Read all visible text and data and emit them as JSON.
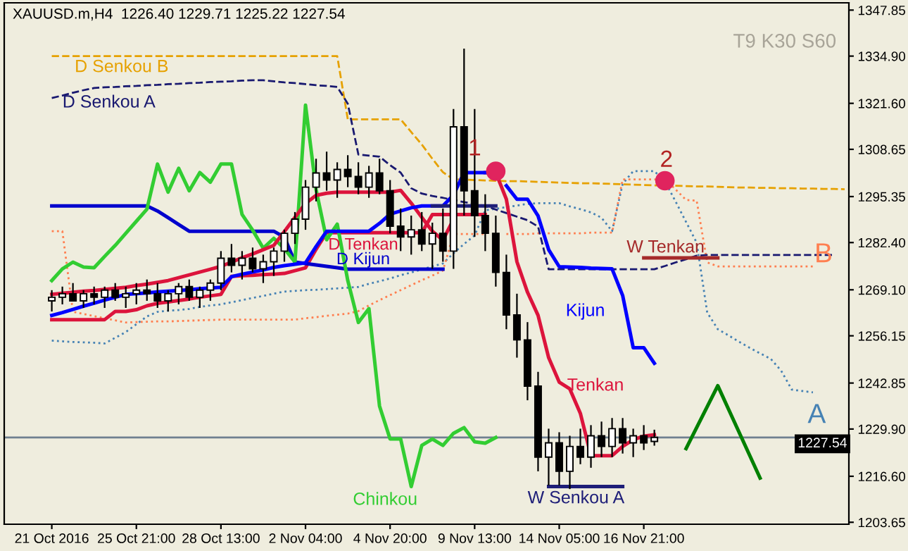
{
  "chart_data": {
    "type": "candlestick",
    "title": "XAUUSD.m,H4  1226.40 1229.71 1225.22 1227.54",
    "categories": [
      "21 Oct 2016",
      null,
      null,
      null,
      null,
      null,
      null,
      null,
      "25 Oct 21:00",
      null,
      null,
      null,
      null,
      null,
      null,
      null,
      "28 Oct 13:00",
      null,
      null,
      null,
      null,
      null,
      null,
      null,
      "2 Nov 04:00",
      null,
      null,
      null,
      null,
      null,
      null,
      null,
      "4 Nov 20:00",
      null,
      null,
      null,
      null,
      null,
      null,
      null,
      "9 Nov 13:00",
      null,
      null,
      null,
      null,
      null,
      null,
      null,
      "14 Nov 05:00",
      null,
      null,
      null,
      null,
      null,
      null,
      null,
      "16 Nov 21:00",
      null,
      null,
      null,
      null,
      null,
      null,
      null,
      null,
      null,
      null,
      null,
      null,
      null,
      null,
      null,
      null,
      null,
      null,
      null
    ],
    "ohlc": [
      [
        1266,
        1269,
        1263,
        1267
      ],
      [
        1267,
        1270,
        1265,
        1268
      ],
      [
        1268,
        1271,
        1266,
        1266
      ],
      [
        1266,
        1269,
        1264,
        1268
      ],
      [
        1268,
        1270,
        1265,
        1267
      ],
      [
        1267,
        1270,
        1264,
        1269
      ],
      [
        1269,
        1271,
        1266,
        1267
      ],
      [
        1267,
        1270,
        1264,
        1268
      ],
      [
        1268,
        1271,
        1265,
        1269
      ],
      [
        1269,
        1272,
        1266,
        1268
      ],
      [
        1268,
        1271,
        1264,
        1266
      ],
      [
        1266,
        1269,
        1263,
        1268
      ],
      [
        1268,
        1271,
        1265,
        1270
      ],
      [
        1270,
        1272,
        1266,
        1267
      ],
      [
        1267,
        1270,
        1264,
        1269
      ],
      [
        1269,
        1272,
        1266,
        1271
      ],
      [
        1271,
        1280,
        1269,
        1278
      ],
      [
        1278,
        1282,
        1274,
        1276
      ],
      [
        1276,
        1280,
        1272,
        1278
      ],
      [
        1278,
        1281,
        1274,
        1275
      ],
      [
        1275,
        1279,
        1271,
        1277
      ],
      [
        1277,
        1281,
        1273,
        1280
      ],
      [
        1280,
        1286,
        1277,
        1285
      ],
      [
        1285,
        1291,
        1282,
        1289
      ],
      [
        1289,
        1300,
        1286,
        1298
      ],
      [
        1298,
        1306,
        1294,
        1302
      ],
      [
        1302,
        1308,
        1297,
        1300
      ],
      [
        1300,
        1305,
        1295,
        1303
      ],
      [
        1303,
        1307,
        1298,
        1301
      ],
      [
        1301,
        1305,
        1296,
        1298
      ],
      [
        1298,
        1304,
        1295,
        1302
      ],
      [
        1302,
        1306,
        1296,
        1297
      ],
      [
        1297,
        1300,
        1285,
        1287
      ],
      [
        1287,
        1292,
        1280,
        1284
      ],
      [
        1284,
        1290,
        1279,
        1286
      ],
      [
        1286,
        1291,
        1280,
        1282
      ],
      [
        1282,
        1288,
        1275,
        1285
      ],
      [
        1285,
        1292,
        1277,
        1280
      ],
      [
        1280,
        1320,
        1275,
        1315
      ],
      [
        1315,
        1337,
        1290,
        1297
      ],
      [
        1297,
        1320,
        1284,
        1290
      ],
      [
        1290,
        1296,
        1280,
        1285
      ],
      [
        1285,
        1290,
        1270,
        1274
      ],
      [
        1274,
        1279,
        1258,
        1262
      ],
      [
        1262,
        1268,
        1250,
        1255
      ],
      [
        1255,
        1260,
        1238,
        1242
      ],
      [
        1242,
        1246,
        1218,
        1222
      ],
      [
        1222,
        1230,
        1214,
        1226
      ],
      [
        1226,
        1229,
        1214,
        1218
      ],
      [
        1218,
        1228,
        1213,
        1225
      ],
      [
        1225,
        1230,
        1220,
        1222
      ],
      [
        1222,
        1231,
        1219,
        1228
      ],
      [
        1228,
        1232,
        1222,
        1225
      ],
      [
        1225,
        1233,
        1222,
        1230
      ],
      [
        1230,
        1233,
        1223,
        1226
      ],
      [
        1226,
        1230,
        1222,
        1228
      ],
      [
        1228,
        1231,
        1224,
        1226
      ],
      [
        1226.4,
        1229.71,
        1225.22,
        1227.54
      ],
      null,
      null,
      null,
      null,
      null,
      null,
      null,
      null,
      null,
      null,
      null,
      null,
      null,
      null,
      null,
      null,
      null,
      null
    ],
    "series": [
      {
        "type": "line",
        "name": "A",
        "color": "#4682b4",
        "line_style": "dotted",
        "values": [
          1254.8,
          1254.6,
          1254.4,
          1254.3,
          1254.2,
          1254.0,
          1255.6,
          1257.2,
          1259.4,
          1261.6,
          1262.9,
          1263.2,
          1263.4,
          1263.7,
          1264.3,
          1264.7,
          1265.0,
          1265.6,
          1266.2,
          1266.8,
          1267.4,
          1268.0,
          1268.6,
          1268.8,
          1269.0,
          1269.1,
          1269.3,
          1269.5,
          1269.7,
          1269.9,
          1270.8,
          1271.5,
          1272.3,
          1273.2,
          1274.0,
          1274.8,
          1275.7,
          1276.5,
          1279.4,
          1282.0,
          1284.4,
          1291.5,
          1291.9,
          1292.4,
          1292.8,
          1293.3,
          1293.5,
          1293.5,
          1293.5,
          1292.6,
          1291.8,
          1290.9,
          1289.4,
          1285.6,
          1298.9,
          1302.5,
          1302.5,
          1302.5,
          1299.6,
          1294.0,
          1288.2,
          1282.4,
          1262.7,
          1258.0,
          1256.3,
          1254.5,
          1252.8,
          1251.2,
          1249.7,
          1246.3,
          1241.0,
          1240.6,
          1240.2,
          null,
          null,
          null
        ]
      },
      {
        "type": "line",
        "name": "B",
        "color": "#ff7f50",
        "line_style": "dotted",
        "values": [
          1285.6,
          1285.6,
          1262.9,
          1262.3,
          1261.7,
          1261.1,
          1260.5,
          1259.9,
          1260.0,
          1260.1,
          1260.2,
          1260.2,
          1260.3,
          1260.4,
          1260.5,
          1260.6,
          1260.7,
          1260.7,
          1260.7,
          1260.7,
          1260.7,
          1260.7,
          1260.7,
          1260.7,
          1261.1,
          1261.4,
          1261.8,
          1262.1,
          1262.4,
          1263.1,
          1264.7,
          1266.2,
          1267.6,
          1269.0,
          1270.4,
          1271.8,
          1273.1,
          1274.5,
          1284.8,
          1284.8,
          1284.8,
          1284.8,
          null,
          1284.8,
          1284.8,
          1284.8,
          1285.0,
          1285.0,
          1285.0,
          1285.0,
          1285.0,
          1285.2,
          1285.2,
          1285.2,
          1300.2,
          1300.2,
          1300.2,
          1300.2,
          1300.2,
          1297.4,
          1294.4,
          1294.2,
          1276.8,
          1275.7,
          1275.7,
          1275.7,
          1275.7,
          1275.7,
          1275.7,
          1275.7,
          1275.7,
          1275.7,
          1275.7,
          null,
          null,
          null
        ]
      },
      {
        "type": "line",
        "name": "D Senkou B",
        "color": "#e6a100",
        "line_style": "dashed",
        "values": [
          1334.9,
          1334.9,
          1334.9,
          1334.9,
          1334.9,
          1334.9,
          1334.9,
          1334.9,
          1334.9,
          1334.9,
          1334.9,
          1334.9,
          1334.9,
          1334.9,
          1334.9,
          1334.9,
          1334.9,
          1334.9,
          1334.9,
          1334.9,
          1334.9,
          1334.9,
          1334.9,
          1334.9,
          1334.9,
          1334.9,
          1334.9,
          1334.9,
          1317.1,
          1317.1,
          1317.1,
          1317.1,
          1317.1,
          1317.1,
          1313.5,
          1310.0,
          1306.0,
          1302.2,
          1300.2,
          1300.1,
          1300.0,
          1299.9,
          1299.8,
          1299.7,
          1299.7,
          1299.6,
          1299.5,
          1299.4,
          1299.3,
          1299.2,
          1299.1,
          1299.1,
          1299.0,
          1298.9,
          1298.8,
          1298.7,
          1298.6,
          1298.5,
          1298.5,
          1298.4,
          1298.3,
          1298.2,
          1298.2,
          1298.1,
          1298.0,
          1297.9,
          1297.9,
          1297.8,
          1297.8,
          1297.7,
          1297.7,
          1297.6,
          1297.6,
          1297.5,
          1297.5,
          1297.4
        ]
      },
      {
        "type": "line",
        "name": "D Senkou A",
        "color": "#191970",
        "line_style": "dashed",
        "values": [
          1323.1,
          1323.8,
          1324.6,
          1325.3,
          1325.9,
          1326.1,
          1326.2,
          1326.4,
          1326.5,
          1326.7,
          1326.8,
          1327.0,
          1327.1,
          1327.3,
          1327.4,
          1327.6,
          1327.7,
          1327.8,
          1328.0,
          1328.1,
          1328.1,
          1327.8,
          1327.5,
          1327.3,
          1327.0,
          1326.7,
          1326.5,
          1326.2,
          1321.5,
          1307.2,
          1306.9,
          1306.6,
          1304.2,
          1302.1,
          1297.7,
          1296.2,
          1295.5,
          1295.0,
          1294.4,
          1293.8,
          1293.3,
          1292.7,
          1291.7,
          1290.7,
          1289.7,
          1288.7,
          1286.9,
          1274.9,
          1274.9,
          1274.9,
          1274.9,
          1274.9,
          1274.9,
          1274.9,
          1274.9,
          1274.9,
          1274.9,
          1274.9,
          1275.8,
          1276.8,
          1277.7,
          1278.7,
          1278.9,
          1278.9,
          1278.9,
          1278.9,
          1278.9,
          1278.9,
          1278.9,
          1278.9,
          1278.9,
          1278.9,
          1278.9,
          1278.9,
          1278.9,
          null
        ]
      },
      {
        "type": "line",
        "name": "D Tenkan",
        "color": "#dc143c",
        "line_style": "solid",
        "values": [
          1260.7,
          1260.7,
          1260.7,
          1260.7,
          1260.7,
          1260.7,
          1263.0,
          1263.0,
          1263.5,
          1264.6,
          1265.3,
          1265.7,
          1266.1,
          1266.5,
          1267.0,
          1267.4,
          1267.8,
          1272.9,
          1273.1,
          1273.2,
          1273.4,
          1273.5,
          1273.7,
          1274.5,
          1275.3,
          1280.5,
          1285.2,
          1285.2,
          1285.2,
          1285.2,
          1285.2,
          1285.2,
          1285.2,
          1285.2,
          1285.2,
          1285.2,
          1290.3,
          1290.3,
          1290.3,
          1290.3,
          1290.3,
          1290.3,
          null,
          null,
          null,
          null,
          null,
          null,
          null,
          null,
          null,
          null,
          null,
          null,
          null,
          null,
          null,
          null,
          null,
          null,
          null,
          null,
          null,
          null,
          null,
          null,
          null,
          null,
          null,
          null,
          null,
          null,
          null,
          null,
          null,
          null
        ]
      },
      {
        "type": "line",
        "name": "D Kijun",
        "color": "#0000cd",
        "line_style": "solid",
        "values": [
          1292.7,
          1292.7,
          1292.7,
          1292.7,
          1292.7,
          1292.7,
          1292.7,
          1292.7,
          1292.7,
          1292.7,
          1291.3,
          1289.4,
          1287.5,
          1285.6,
          1285.6,
          1285.6,
          1285.6,
          1285.6,
          1285.6,
          1285.6,
          1285.6,
          1285.6,
          1283.9,
          1276.9,
          1276.5,
          1276.1,
          1275.7,
          1275.3,
          1274.9,
          1274.9,
          1274.9,
          1274.9,
          1274.9,
          1274.9,
          1274.9,
          1274.9,
          1274.9,
          1274.9,
          null,
          null,
          null,
          null,
          null,
          null,
          null,
          null,
          null,
          null,
          null,
          null,
          null,
          null,
          null,
          null,
          null,
          null,
          null,
          null,
          null,
          null,
          null,
          null,
          null,
          null,
          null,
          null,
          null,
          null,
          null,
          null,
          null,
          null,
          null,
          null,
          null,
          null
        ]
      },
      {
        "type": "line",
        "name": "Chinkou",
        "color": "#32cd32",
        "line_style": "solid",
        "values": [
          1271.7,
          1275.0,
          1276.9,
          1275.5,
          1275.3,
          1278.5,
          1281.6,
          1285.0,
          1288.4,
          1291.8,
          1304.5,
          1296.6,
          1303.3,
          1297.0,
          1302.1,
          1299.4,
          1304.5,
          1304.5,
          1290.3,
          1285.9,
          1280.8,
          1283.6,
          1280.7,
          1276.9,
          1321.1,
          1297.3,
          1283.2,
          1287.6,
          1271.7,
          1259.9,
          1263.8,
          1236.4,
          1227.1,
          1227.1,
          1213.7,
          1225.3,
          1227.1,
          1225.3,
          1228.7,
          1230.3,
          1226.3,
          1225.9,
          1227.5,
          null,
          null,
          null,
          null,
          null,
          null,
          null,
          null,
          null,
          null,
          null,
          null,
          null,
          null,
          null,
          null,
          null,
          null,
          null,
          null,
          null,
          null,
          null,
          null,
          null,
          null,
          null,
          null,
          null,
          null,
          null,
          null,
          null
        ]
      },
      {
        "type": "line",
        "name": "Tenkan",
        "color": "#dc143c",
        "line_style": "solid",
        "values": [
          1267.8,
          1268.1,
          1268.4,
          1268.7,
          1268.9,
          1269.2,
          1269.5,
          1269.8,
          1270.3,
          1270.7,
          1271.2,
          1271.7,
          1272.5,
          1273.3,
          1274.1,
          1274.9,
          1275.7,
          1276.9,
          1278.1,
          1279.2,
          1280.4,
          1281.6,
          1285.5,
          1289.5,
          1293.4,
          1295.7,
          1296.3,
          1296.6,
          1296.6,
          1296.6,
          1296.6,
          1296.6,
          1296.6,
          1297.1,
          1293.5,
          1289.5,
          1285.6,
          1283.1,
          1288.9,
          null,
          null,
          1302.1,
          1302.1,
          1294.6,
          1277.0,
          1268.4,
          1261.9,
          1250.0,
          1243.1,
          1241.2,
          1234.3,
          1222.4,
          1222.4,
          1222.4,
          1225.0,
          1226.9,
          1227.9,
          1228.3,
          null,
          null,
          null,
          null,
          null,
          null,
          null,
          null,
          null,
          null,
          null,
          null,
          null,
          null,
          null,
          null,
          null,
          null
        ]
      },
      {
        "type": "line",
        "name": "Kijun",
        "color": "#0000ff",
        "line_style": "solid",
        "values": [
          1261.9,
          1262.7,
          1263.6,
          1264.5,
          1265.3,
          1266.2,
          1267.0,
          1267.8,
          1268.0,
          1268.2,
          1268.5,
          1268.7,
          1268.9,
          1269.1,
          1269.4,
          1269.6,
          1269.8,
          1272.8,
          1273.5,
          1274.1,
          1274.7,
          1275.4,
          1275.9,
          1276.3,
          1276.7,
          1281.3,
          1285.6,
          1285.6,
          1285.6,
          1285.6,
          1285.6,
          1287.8,
          1290.4,
          1291.3,
          1292.2,
          1292.7,
          1292.7,
          1292.7,
          1295.8,
          1302.1,
          1302.1,
          1302.1,
          null,
          1298.4,
          1294.6,
          1294.6,
          1289.9,
          1280.4,
          1275.6,
          1275.5,
          1275.4,
          1275.2,
          1275.1,
          1275.0,
          1267.5,
          1252.8,
          1252.8,
          1248.4,
          null,
          null,
          null,
          null,
          null,
          null,
          null,
          null,
          null,
          null,
          null,
          null,
          null,
          null,
          null,
          null,
          null,
          null
        ]
      },
      {
        "type": "line",
        "color": "#1e1e78",
        "line_style": "solid",
        "values": [
          null,
          null,
          null,
          null,
          null,
          null,
          null,
          null,
          null,
          null,
          null,
          null,
          null,
          null,
          null,
          null,
          null,
          null,
          null,
          null,
          null,
          null,
          null,
          null,
          null,
          null,
          null,
          null,
          null,
          null,
          null,
          null,
          null,
          null,
          null,
          null,
          1292.7,
          1292.7,
          1292.7,
          1292.7,
          1292.7,
          1292.7,
          1292.7,
          null,
          null,
          null,
          null,
          null,
          null,
          null,
          null,
          null,
          null,
          null,
          null,
          null,
          null,
          null,
          null,
          null,
          null,
          null,
          null,
          null,
          null,
          null,
          null,
          null,
          null,
          null,
          null,
          null,
          null,
          null,
          null,
          null
        ]
      },
      {
        "type": "line",
        "name": "W Tenkan",
        "color": "#a52a2a",
        "line_style": "solid",
        "values": [
          null,
          null,
          null,
          null,
          null,
          null,
          null,
          null,
          null,
          null,
          null,
          null,
          null,
          null,
          null,
          null,
          null,
          null,
          null,
          null,
          null,
          null,
          null,
          null,
          null,
          null,
          null,
          null,
          null,
          null,
          null,
          null,
          null,
          null,
          null,
          null,
          null,
          null,
          null,
          null,
          null,
          null,
          null,
          null,
          null,
          null,
          null,
          null,
          null,
          null,
          null,
          null,
          null,
          null,
          null,
          null,
          1278.1,
          1278.1,
          1278.1,
          1278.1,
          1278.1,
          1278.1,
          1278.1,
          1278.1,
          null,
          null,
          null,
          null,
          null,
          null,
          null,
          null,
          null,
          null,
          null,
          null
        ]
      },
      {
        "type": "line",
        "name": "W Senkou A",
        "color": "#1e1e78",
        "line_style": "solid",
        "values": [
          null,
          null,
          null,
          null,
          null,
          null,
          null,
          null,
          null,
          null,
          null,
          null,
          null,
          null,
          null,
          null,
          null,
          null,
          null,
          null,
          null,
          null,
          null,
          null,
          null,
          null,
          null,
          null,
          null,
          null,
          null,
          null,
          null,
          null,
          null,
          null,
          null,
          null,
          null,
          null,
          null,
          null,
          null,
          null,
          null,
          null,
          null,
          1213.7,
          1213.7,
          1213.7,
          1213.7,
          1213.7,
          1213.7,
          1213.7,
          1213.7,
          null,
          null,
          null,
          null,
          null,
          null,
          null,
          null,
          null,
          null,
          null,
          null,
          null,
          null,
          null,
          null,
          null,
          null,
          null,
          null,
          null
        ]
      },
      {
        "type": "line",
        "color": "#008000",
        "line_style": "solid",
        "values": [
          null,
          null,
          null,
          null,
          null,
          null,
          null,
          null,
          null,
          null,
          null,
          null,
          null,
          null,
          null,
          null,
          null,
          null,
          null,
          null,
          null,
          null,
          null,
          null,
          null,
          null,
          null,
          null,
          null,
          null,
          null,
          null,
          null,
          null,
          null,
          null,
          null,
          null,
          null,
          null,
          null,
          null,
          null,
          null,
          null,
          null,
          null,
          null,
          null,
          null,
          null,
          null,
          null,
          null,
          null,
          null,
          null,
          null,
          null,
          null,
          1224.4,
          1230.3,
          1236.2,
          1242.1,
          1235.6,
          1229.1,
          1222.6,
          1216.1,
          null,
          null,
          null,
          null,
          null,
          null,
          null,
          null
        ]
      },
      {
        "type": "scatter",
        "color": "#e0245e",
        "marker": "circle",
        "values": [
          null,
          null,
          null,
          null,
          null,
          null,
          null,
          null,
          null,
          null,
          null,
          null,
          null,
          null,
          null,
          null,
          null,
          null,
          null,
          null,
          null,
          null,
          null,
          null,
          null,
          null,
          null,
          null,
          null,
          null,
          null,
          null,
          null,
          null,
          null,
          null,
          null,
          null,
          null,
          null,
          null,
          null,
          1302.5,
          null,
          null,
          null,
          null,
          null,
          null,
          null,
          null,
          null,
          null,
          null,
          null,
          null,
          null,
          null,
          1299.8,
          null,
          null,
          null,
          null,
          null,
          null,
          null,
          null,
          null,
          null,
          null,
          null,
          null,
          null,
          null,
          null,
          null
        ]
      }
    ],
    "annotations": [
      "T9 K30 S60",
      "1",
      "2"
    ],
    "ref_lines": [
      {
        "axis": "y",
        "value": 1227.54,
        "label": "1227.54",
        "color": "#708090"
      }
    ],
    "ylim": [
      1203.1,
      1349.9
    ],
    "yticks": [
      {
        "value": 1203.65,
        "label": "1203.65"
      },
      {
        "value": 1216.6,
        "label": "1216.60"
      },
      {
        "value": 1229.9,
        "label": "1229.90"
      },
      {
        "value": 1242.85,
        "label": "1242.85"
      },
      {
        "value": 1256.15,
        "label": "1256.15"
      },
      {
        "value": 1269.1,
        "label": "1269.10"
      },
      {
        "value": 1282.4,
        "label": "1282.40"
      },
      {
        "value": 1295.35,
        "label": "1295.35"
      },
      {
        "value": 1308.65,
        "label": "1308.65"
      },
      {
        "value": 1321.6,
        "label": "1321.60"
      },
      {
        "value": 1334.9,
        "label": "1334.90"
      },
      {
        "value": 1347.85,
        "label": "1347.85"
      }
    ],
    "grid": false,
    "legend": false
  }
}
